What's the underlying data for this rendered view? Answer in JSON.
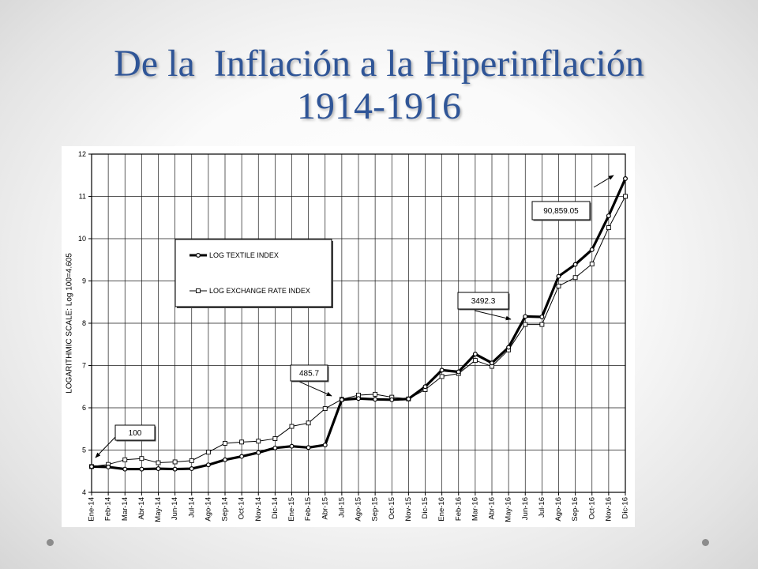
{
  "slide": {
    "title_line1": "De la  Inflación a la Hiperinflación",
    "title_line2": "1914-1916",
    "title_color": "#2f5597"
  },
  "chart_data": {
    "type": "line",
    "categories": [
      "Ene-14",
      "Feb-14",
      "Mar-14",
      "Abr-14",
      "May-14",
      "Jun-14",
      "Jul-14",
      "Ago-14",
      "Sep-14",
      "Oct-14",
      "Nov-14",
      "Dic-14",
      "Ene-15",
      "Feb-15",
      "Abr-15",
      "Jul-15",
      "Ago-15",
      "Sep-15",
      "Oct-15",
      "Nov-15",
      "Dic-15",
      "Ene-16",
      "Feb-16",
      "Mar-16",
      "Abr-16",
      "May-16",
      "Jun-16",
      "Jul-16",
      "Ago-16",
      "Sep-16",
      "Oct-16",
      "Nov-16",
      "Dic-16"
    ],
    "series": [
      {
        "name": "LOG TEXTILE INDEX",
        "color": "#000000",
        "values": [
          4.61,
          4.6,
          4.55,
          4.55,
          4.56,
          4.55,
          4.56,
          4.65,
          4.77,
          4.85,
          4.94,
          5.05,
          5.09,
          5.06,
          5.12,
          6.19,
          6.22,
          6.2,
          6.19,
          6.21,
          6.5,
          6.89,
          6.85,
          7.27,
          7.06,
          7.43,
          8.16,
          8.15,
          9.11,
          9.39,
          9.74,
          10.54,
          11.42
        ]
      },
      {
        "name": "LOG EXCHANGE RATE INDEX",
        "color": "#000000",
        "values": [
          4.61,
          4.66,
          4.77,
          4.8,
          4.7,
          4.72,
          4.75,
          4.95,
          5.16,
          5.19,
          5.21,
          5.27,
          5.56,
          5.64,
          5.98,
          6.2,
          6.3,
          6.32,
          6.25,
          6.21,
          6.43,
          6.74,
          6.81,
          7.12,
          6.98,
          7.37,
          7.97,
          7.97,
          8.88,
          9.08,
          9.4,
          10.26,
          11.0
        ]
      }
    ],
    "ylabel": "LOGARITHMIC SCALE: Log 100=4.605",
    "ylim": [
      4,
      12
    ],
    "yticks": [
      4,
      5,
      6,
      7,
      8,
      9,
      10,
      11,
      12
    ],
    "grid": true,
    "legend": "upper-left",
    "annotations": [
      {
        "text": "100"
      },
      {
        "text": "485.7"
      },
      {
        "text": "3492.3"
      },
      {
        "text": "90,859.05"
      }
    ]
  }
}
